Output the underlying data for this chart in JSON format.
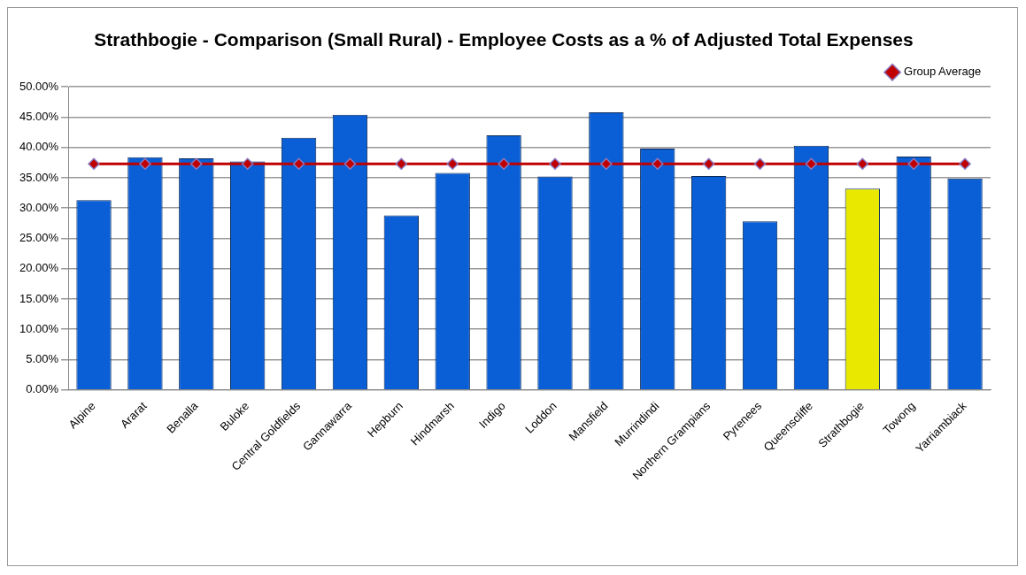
{
  "chart_data": {
    "type": "bar",
    "title": "Strathbogie - Comparison (Small Rural) - Employee Costs as a % of Adjusted Total Expenses",
    "categories": [
      "Alpine",
      "Ararat",
      "Benalla",
      "Buloke",
      "Central Goldfields",
      "Gannawarra",
      "Hepburn",
      "Hindmarsh",
      "Indigo",
      "Loddon",
      "Mansfield",
      "Murrindindi",
      "Northern Grampians",
      "Pyrenees",
      "Queenscliffe",
      "Strathbogie",
      "Towong",
      "Yarriambiack"
    ],
    "series": [
      {
        "colors": [
          "#0a5fd6",
          "#0a5fd6",
          "#0a5fd6",
          "#0a5fd6",
          "#0a5fd6",
          "#0a5fd6",
          "#0a5fd6",
          "#0a5fd6",
          "#0a5fd6",
          "#0a5fd6",
          "#0a5fd6",
          "#0a5fd6",
          "#0a5fd6",
          "#0a5fd6",
          "#0a5fd6",
          "#e8e800",
          "#0a5fd6",
          "#0a5fd6"
        ],
        "values": [
          31.3,
          38.4,
          38.2,
          37.7,
          41.6,
          45.4,
          28.8,
          35.8,
          42.0,
          35.2,
          45.8,
          39.8,
          35.3,
          27.8,
          40.3,
          33.2,
          38.5,
          34.9
        ]
      },
      {
        "type": "line",
        "name": "Group Average",
        "color": "#c00000",
        "values": [
          37.3,
          37.3,
          37.3,
          37.3,
          37.3,
          37.3,
          37.3,
          37.3,
          37.3,
          37.3,
          37.3,
          37.3,
          37.3,
          37.3,
          37.3,
          37.3,
          37.3,
          37.3
        ]
      }
    ],
    "ylim": [
      0,
      50
    ],
    "yticks": [
      {
        "value": 0,
        "label": "0.00%"
      },
      {
        "value": 5,
        "label": "5.00%"
      },
      {
        "value": 10,
        "label": "10.00%"
      },
      {
        "value": 15,
        "label": "15.00%"
      },
      {
        "value": 20,
        "label": "20.00%"
      },
      {
        "value": 25,
        "label": "25.00%"
      },
      {
        "value": 30,
        "label": "30.00%"
      },
      {
        "value": 35,
        "label": "35.00%"
      },
      {
        "value": 40,
        "label": "40.00%"
      },
      {
        "value": 45,
        "label": "45.00%"
      },
      {
        "value": 50,
        "label": "50.00%"
      }
    ],
    "grid": "y",
    "legend": "top right",
    "marker": "diamond",
    "line_style": "solid"
  }
}
